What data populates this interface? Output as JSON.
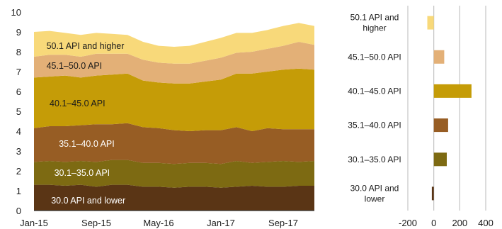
{
  "chart_data": [
    {
      "type": "area",
      "stacked": true,
      "title": "",
      "xlabel": "",
      "ylabel": "",
      "ylim": [
        0,
        10
      ],
      "yticks": [
        0,
        1,
        2,
        3,
        4,
        5,
        6,
        7,
        8,
        9,
        10
      ],
      "xticks": [
        "Jan-15",
        "Sep-15",
        "May-16",
        "Jan-17",
        "Sep-17"
      ],
      "x": [
        "Jan-15",
        "Mar-15",
        "May-15",
        "Jul-15",
        "Sep-15",
        "Nov-15",
        "Jan-16",
        "Mar-16",
        "May-16",
        "Jul-16",
        "Sep-16",
        "Nov-16",
        "Jan-17",
        "Mar-17",
        "May-17",
        "Jul-17",
        "Sep-17",
        "Nov-17",
        "Dec-17"
      ],
      "series": [
        {
          "name": "30.0 API and lower",
          "color": "#5a3515",
          "values": [
            1.3,
            1.3,
            1.25,
            1.3,
            1.2,
            1.3,
            1.3,
            1.2,
            1.2,
            1.15,
            1.2,
            1.2,
            1.15,
            1.2,
            1.25,
            1.2,
            1.2,
            1.25,
            1.25
          ]
        },
        {
          "name": "30.1–35.0 API",
          "color": "#7d6a12",
          "values": [
            1.15,
            1.2,
            1.2,
            1.2,
            1.25,
            1.25,
            1.25,
            1.2,
            1.2,
            1.2,
            1.2,
            1.2,
            1.2,
            1.3,
            1.15,
            1.25,
            1.3,
            1.2,
            1.25
          ]
        },
        {
          "name": "35.1–40.0 API",
          "color": "#975d24",
          "values": [
            1.7,
            1.75,
            1.8,
            1.8,
            1.9,
            1.8,
            1.85,
            1.8,
            1.75,
            1.7,
            1.6,
            1.65,
            1.7,
            1.7,
            1.6,
            1.7,
            1.6,
            1.65,
            1.6
          ]
        },
        {
          "name": "40.1–45.0 API",
          "color": "#c59c07",
          "values": [
            2.55,
            2.5,
            2.55,
            2.4,
            2.45,
            2.5,
            2.5,
            2.35,
            2.3,
            2.35,
            2.4,
            2.45,
            2.55,
            2.7,
            2.9,
            2.85,
            3.0,
            3.05,
            3.0
          ]
        },
        {
          "name": "45.1–50.0 API",
          "color": "#e3b077",
          "values": [
            1.05,
            1.1,
            1.05,
            1.05,
            1.1,
            1.05,
            1.0,
            1.05,
            1.0,
            1.0,
            1.0,
            1.05,
            1.1,
            1.05,
            1.1,
            1.15,
            1.2,
            1.35,
            1.25
          ]
        },
        {
          "name": "50.1 API and higher",
          "color": "#f8d97a",
          "values": [
            1.25,
            1.2,
            1.1,
            1.1,
            1.05,
            1.0,
            0.95,
            0.9,
            0.85,
            0.85,
            0.9,
            0.95,
            1.0,
            1.0,
            0.95,
            0.95,
            1.0,
            0.95,
            0.95
          ]
        }
      ]
    },
    {
      "type": "bar",
      "orientation": "horizontal",
      "title": "",
      "xlabel": "",
      "xlim": [
        -200,
        400
      ],
      "xticks": [
        -200,
        0,
        200,
        400
      ],
      "grid": true,
      "categories": [
        "50.1 API and higher",
        "45.1–50.0 API",
        "40.1–45.0 API",
        "35.1–40.0 API",
        "30.1–35.0 API",
        "30.0 API and lower"
      ],
      "display_labels": [
        [
          "50.1 API and",
          "higher"
        ],
        [
          "45.1–50.0 API"
        ],
        [
          "40.1–45.0 API"
        ],
        [
          "35.1–40.0 API"
        ],
        [
          "30.1–35.0 API"
        ],
        [
          "30.0 API and",
          "lower"
        ]
      ],
      "values": [
        -50,
        80,
        290,
        110,
        100,
        -15
      ],
      "colors": [
        "#f8d97a",
        "#e3b077",
        "#c59c07",
        "#975d24",
        "#7d6a12",
        "#5a3515"
      ]
    }
  ]
}
